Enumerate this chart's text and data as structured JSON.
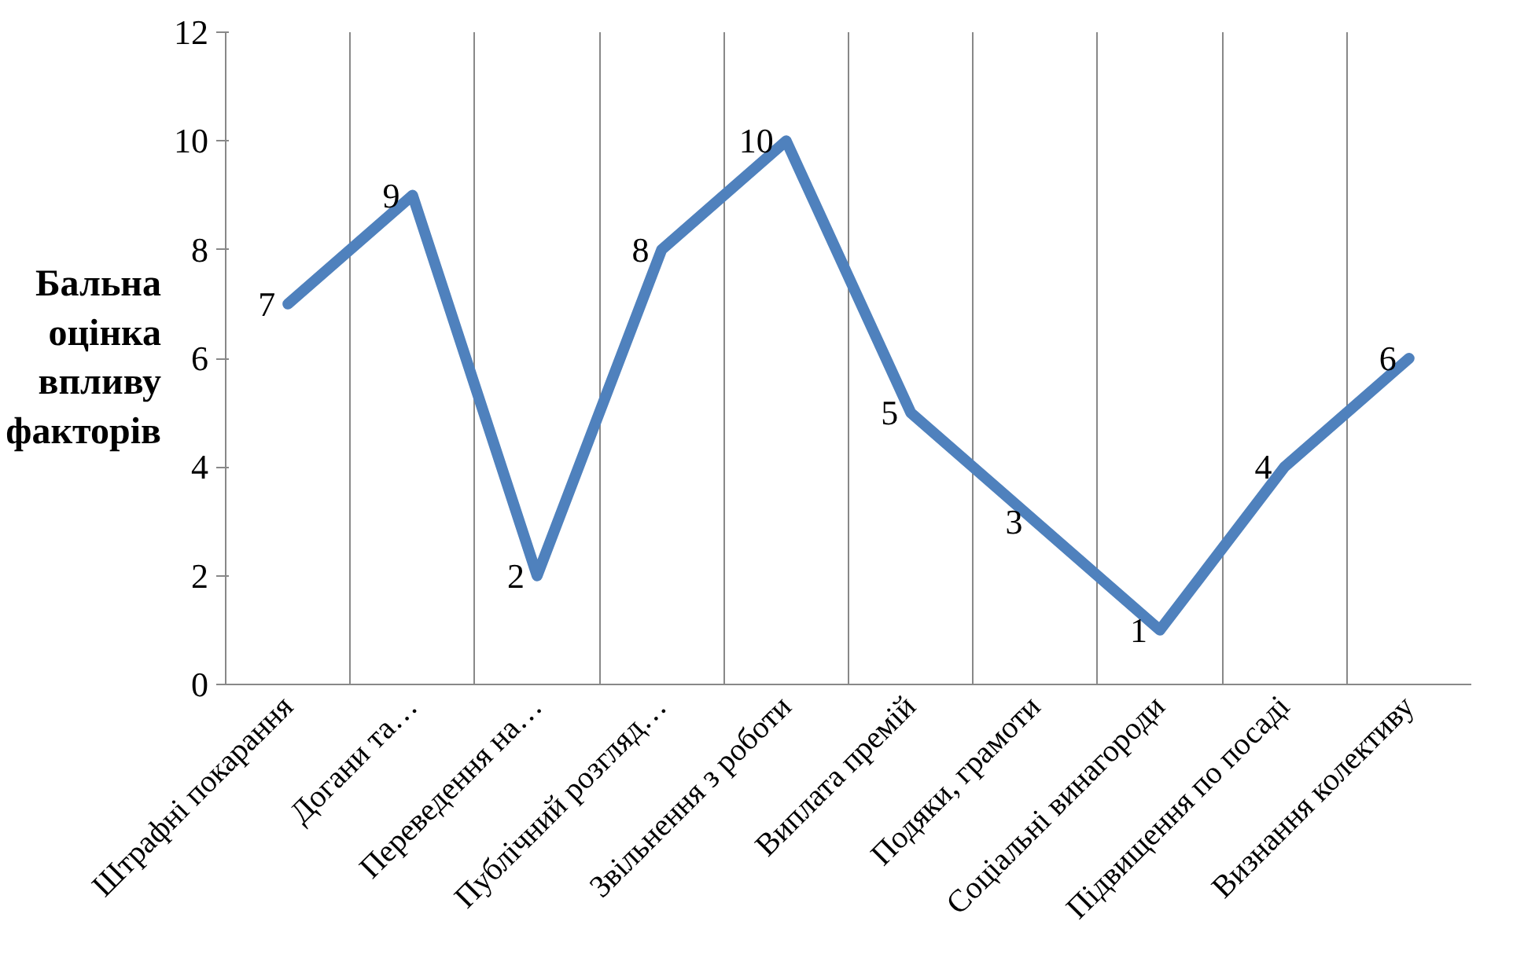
{
  "chart_data": {
    "type": "line",
    "ylabel": "Бальна оцінка впливу факторів",
    "categories": [
      "Штрафні покарання",
      "Догани та…",
      "Переведення на…",
      "Публічний розгляд…",
      "Звільнення з роботи",
      "Виплата премій",
      "Подяки, грамоти",
      "Соціальні винагороди",
      "Підвищення по посаді",
      "Визнання колективу"
    ],
    "series": [
      {
        "color": "#4f81bd",
        "values": [
          7,
          9,
          2,
          8,
          10,
          5,
          3,
          1,
          4,
          6
        ]
      }
    ],
    "ylim": [
      0,
      12
    ],
    "yticks": [
      0,
      2,
      4,
      6,
      8,
      10,
      12
    ],
    "grid": "x",
    "marker": "none",
    "line_style": "solid",
    "data_labels": true
  }
}
